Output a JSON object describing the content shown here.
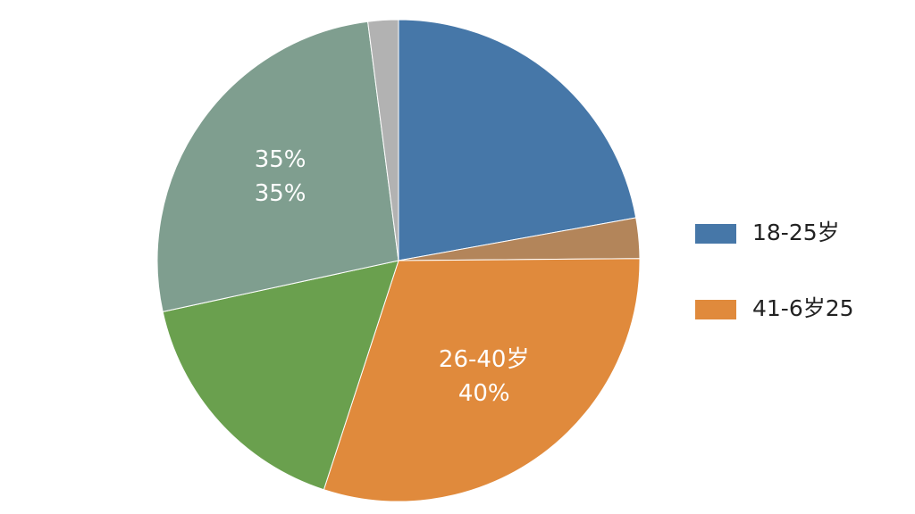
{
  "chart_data": {
    "type": "pie",
    "categories": [
      null,
      null,
      "26-40岁",
      null,
      "35%",
      null
    ],
    "values": [
      29.4,
      3.6,
      40,
      22,
      35,
      2.7
    ],
    "value_labels": [
      null,
      null,
      "40%",
      null,
      "35%",
      null
    ],
    "colors": [
      "#4677a8",
      "#b3855a",
      "#e08a3c",
      "#6aa04e",
      "#7f9e8f",
      "#b2b2b2"
    ],
    "legend": {
      "position": "right",
      "entries": [
        {
          "label": "18-25岁",
          "color": "#4677a8"
        },
        {
          "label": "41-6岁25",
          "color": "#e08a3c"
        }
      ]
    }
  }
}
